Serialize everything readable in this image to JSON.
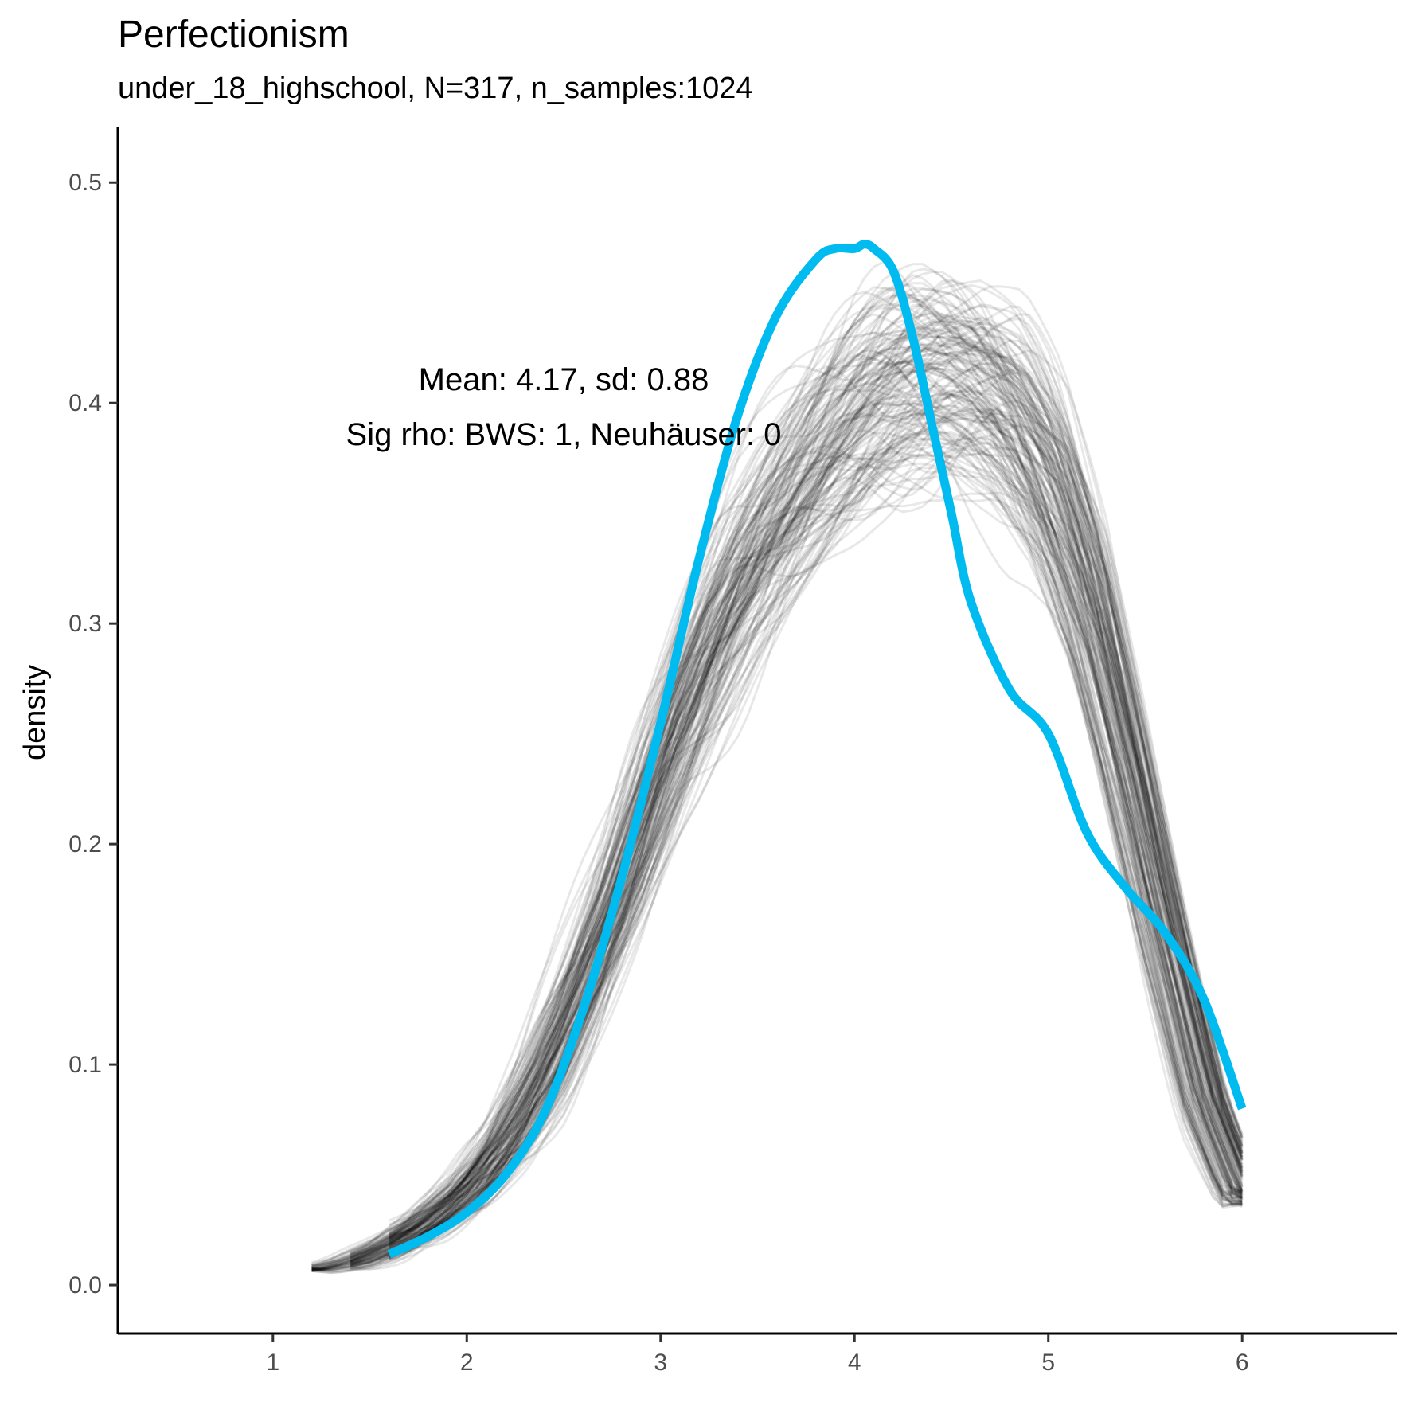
{
  "chart_data": {
    "type": "line",
    "title": "Perfectionism",
    "subtitle": "under_18_highschool, N=317, n_samples:1024",
    "xlabel": "",
    "ylabel": "density",
    "xlim": [
      0.2,
      6.8
    ],
    "ylim": [
      -0.022,
      0.525
    ],
    "x_ticks": [
      1,
      2,
      3,
      4,
      5,
      6
    ],
    "x_tick_labels": [
      "1",
      "2",
      "3",
      "4",
      "5",
      "6"
    ],
    "y_ticks": [
      0.0,
      0.1,
      0.2,
      0.3,
      0.4,
      0.5
    ],
    "y_tick_labels": [
      "0.0",
      "0.1",
      "0.2",
      "0.3",
      "0.4",
      "0.5"
    ],
    "grid": false,
    "legend": "none",
    "annotations": [
      {
        "text": "Mean: 4.17, sd: 0.88",
        "x": 2.5,
        "y": 0.41
      },
      {
        "text": "Sig rho: BWS: 1, Neuhäuser: 0",
        "x": 2.5,
        "y": 0.385
      }
    ],
    "series": [
      {
        "color": "#00BBEF",
        "role": "observed density",
        "x": [
          1.6,
          1.8,
          2.0,
          2.2,
          2.4,
          2.6,
          2.8,
          3.0,
          3.2,
          3.4,
          3.6,
          3.8,
          3.9,
          4.0,
          4.05,
          4.1,
          4.2,
          4.3,
          4.4,
          4.5,
          4.6,
          4.8,
          5.0,
          5.2,
          5.4,
          5.6,
          5.8,
          6.0
        ],
        "y": [
          0.014,
          0.022,
          0.033,
          0.05,
          0.078,
          0.125,
          0.185,
          0.255,
          0.33,
          0.395,
          0.44,
          0.465,
          0.47,
          0.47,
          0.472,
          0.47,
          0.46,
          0.43,
          0.39,
          0.35,
          0.31,
          0.27,
          0.25,
          0.205,
          0.18,
          0.16,
          0.13,
          0.08
        ]
      },
      {
        "color": "#000000",
        "role": "bootstrap sample densities (center of band)",
        "x": [
          1.2,
          1.4,
          1.6,
          1.8,
          2.0,
          2.2,
          2.4,
          2.6,
          2.8,
          3.0,
          3.2,
          3.4,
          3.6,
          3.8,
          4.0,
          4.2,
          4.4,
          4.6,
          4.8,
          5.0,
          5.2,
          5.4,
          5.6,
          5.8,
          6.0
        ],
        "y": [
          0.007,
          0.011,
          0.018,
          0.028,
          0.042,
          0.065,
          0.098,
          0.14,
          0.185,
          0.235,
          0.28,
          0.32,
          0.35,
          0.375,
          0.395,
          0.41,
          0.415,
          0.41,
          0.395,
          0.365,
          0.315,
          0.24,
          0.16,
          0.085,
          0.04
        ]
      }
    ]
  }
}
